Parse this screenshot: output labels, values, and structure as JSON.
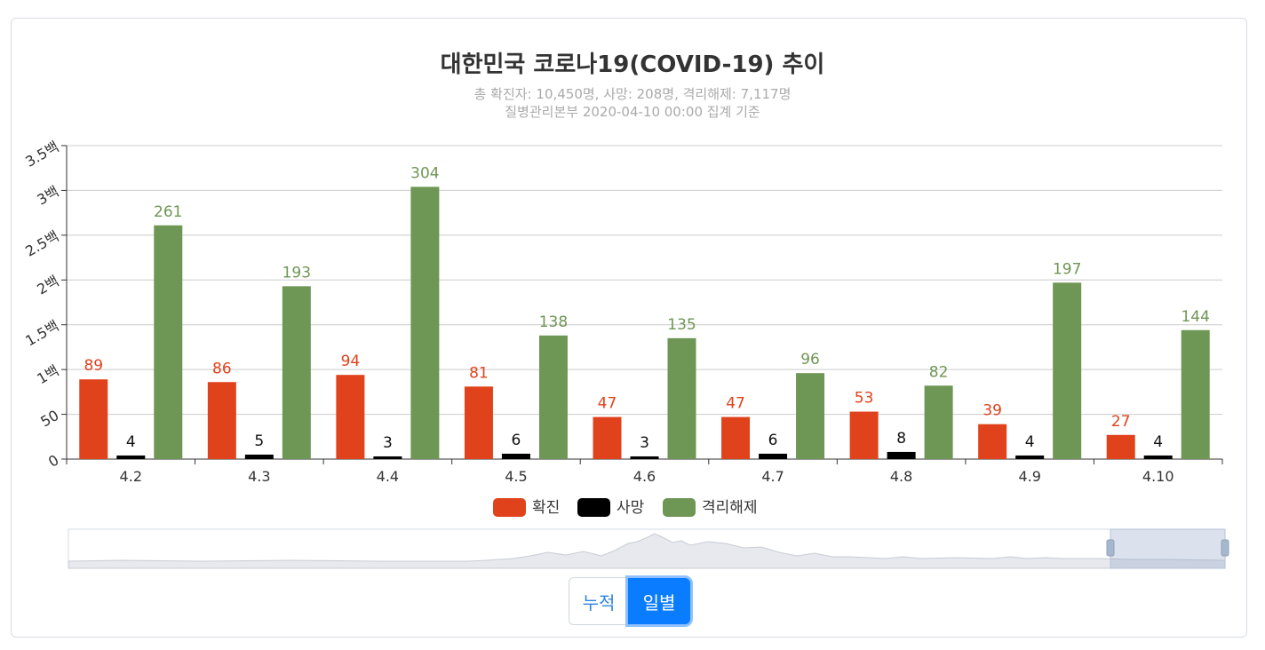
{
  "title": "대한민국 코로나19(COVID-19) 추이",
  "subtitle_line1": "총 확진자: 10,450명, 사망: 208명, 격리해제: 7,117명",
  "subtitle_line2": "질병관리본부 2020-04-10 00:00 집계 기준",
  "colors": {
    "confirmed": "#e0421c",
    "deaths": "#000000",
    "released": "#6e9654"
  },
  "chart_data": {
    "type": "bar",
    "categories": [
      "4.2",
      "4.3",
      "4.4",
      "4.5",
      "4.6",
      "4.7",
      "4.8",
      "4.9",
      "4.10"
    ],
    "series": [
      {
        "name": "확진",
        "values": [
          89,
          86,
          94,
          81,
          47,
          47,
          53,
          39,
          27
        ]
      },
      {
        "name": "사망",
        "values": [
          4,
          5,
          3,
          6,
          3,
          6,
          8,
          4,
          4
        ]
      },
      {
        "name": "격리해제",
        "values": [
          261,
          193,
          304,
          138,
          135,
          96,
          82,
          197,
          144
        ]
      }
    ],
    "y_tick_values": [
      0,
      50,
      100,
      150,
      200,
      250,
      300,
      350
    ],
    "y_tick_labels": [
      "0",
      "50",
      "1백",
      "1.5백",
      "2백",
      "2.5백",
      "3백",
      "3.5백"
    ],
    "ylim": [
      0,
      350
    ],
    "grid": true,
    "legend_position": "bottom"
  },
  "toggle": {
    "cumulative_label": "누적",
    "daily_label": "일별",
    "active": "daily"
  }
}
